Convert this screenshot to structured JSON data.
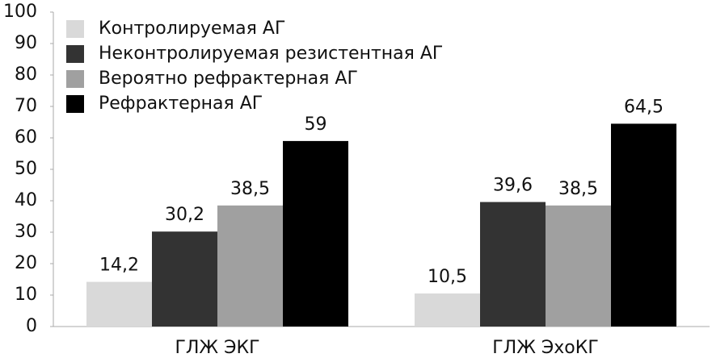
{
  "chart_data": {
    "type": "bar",
    "categories": [
      "ГЛЖ ЭКГ",
      "ГЛЖ ЭхоКГ"
    ],
    "series": [
      {
        "name": "Контролируемая АГ",
        "color": "#d9d9d9",
        "values": [
          14.2,
          10.5
        ],
        "value_labels": [
          "14,2",
          "10,5"
        ]
      },
      {
        "name": "Неконтролируемая резистентная АГ",
        "color": "#333333",
        "values": [
          30.2,
          39.6
        ],
        "value_labels": [
          "30,2",
          "39,6"
        ]
      },
      {
        "name": "Вероятно рефрактерная АГ",
        "color": "#a0a0a0",
        "values": [
          38.5,
          38.5
        ],
        "value_labels": [
          "38,5",
          "38,5"
        ]
      },
      {
        "name": "Рефрактерная АГ",
        "color": "#000000",
        "values": [
          59,
          64.5
        ],
        "value_labels": [
          "59",
          "64,5"
        ]
      }
    ],
    "ylim": [
      0,
      100
    ],
    "yticks": [
      0,
      10,
      20,
      30,
      40,
      50,
      60,
      70,
      80,
      90,
      100
    ],
    "grid": false,
    "legend": "top-left"
  }
}
